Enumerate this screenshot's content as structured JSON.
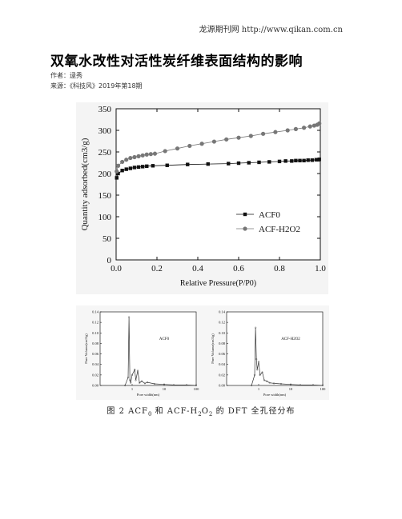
{
  "header": {
    "source_link": "龙源期刊网 http://www.qikan.com.cn"
  },
  "article": {
    "title": "双氧水改性对活性炭纤维表面结构的影响",
    "author": "作者：逯秀",
    "source": "来源：《科技风》2019年第18期"
  },
  "chart_data": [
    {
      "type": "scatter",
      "xlabel": "Relative Pressure(P/P0)",
      "ylabel": "Quantity adsorbed(cm3/g)",
      "xlim": [
        0.0,
        1.0
      ],
      "ylim": [
        0,
        350
      ],
      "x_ticks": [
        "0.0",
        "0.2",
        "0.4",
        "0.6",
        "0.8",
        "1.0"
      ],
      "y_ticks": [
        "0",
        "50",
        "100",
        "150",
        "200",
        "250",
        "300",
        "350"
      ],
      "legend_placement": "right",
      "series": [
        {
          "name": "ACF0",
          "marker": "square",
          "color": "#111111",
          "x": [
            0.003,
            0.01,
            0.03,
            0.05,
            0.07,
            0.09,
            0.11,
            0.13,
            0.15,
            0.18,
            0.25,
            0.35,
            0.45,
            0.55,
            0.6,
            0.65,
            0.7,
            0.75,
            0.8,
            0.83,
            0.86,
            0.88,
            0.9,
            0.92,
            0.94,
            0.96,
            0.98,
            0.99,
            0.995
          ],
          "y": [
            190,
            200,
            207,
            210,
            212,
            214,
            215,
            216,
            217,
            218,
            219,
            221,
            222,
            223,
            224,
            225,
            226,
            227,
            228,
            229,
            229,
            230,
            230,
            230,
            231,
            231,
            232,
            232,
            233
          ]
        },
        {
          "name": "ACF-H2O2",
          "marker": "circle",
          "color": "#777777",
          "x": [
            0.003,
            0.01,
            0.03,
            0.05,
            0.07,
            0.09,
            0.11,
            0.13,
            0.15,
            0.17,
            0.19,
            0.24,
            0.3,
            0.36,
            0.42,
            0.48,
            0.54,
            0.6,
            0.66,
            0.72,
            0.78,
            0.84,
            0.88,
            0.92,
            0.95,
            0.97,
            0.985,
            0.995
          ],
          "y": [
            205,
            218,
            227,
            232,
            236,
            238,
            240,
            242,
            244,
            245,
            246,
            252,
            258,
            264,
            269,
            274,
            279,
            283,
            287,
            292,
            296,
            300,
            303,
            306,
            309,
            311,
            313,
            316
          ]
        }
      ]
    },
    {
      "type": "line",
      "xlabel": "Pore width(nm)",
      "ylabel": "Pore Volume(cm3/g)",
      "xscale": "log",
      "xlim": [
        0.1,
        100
      ],
      "ylim": [
        0,
        0.14
      ],
      "x_ticks": [
        "1",
        "10",
        "100"
      ],
      "y_ticks": [
        "0.00",
        "0.02",
        "0.04",
        "0.06",
        "0.08",
        "0.10",
        "0.12",
        "0.14"
      ],
      "annotation": "ACF0",
      "x": [
        0.6,
        0.75,
        0.8,
        0.85,
        0.9,
        1.0,
        1.2,
        1.3,
        1.5,
        1.7,
        2.0,
        2.5,
        3,
        5,
        10,
        20,
        50,
        100
      ],
      "y": [
        0.0,
        0.015,
        0.13,
        0.01,
        0.005,
        0.02,
        0.03,
        0.01,
        0.028,
        0.005,
        0.008,
        0.004,
        0.006,
        0.003,
        0.002,
        0.001,
        0.001,
        0.0
      ]
    },
    {
      "type": "line",
      "xlabel": "Pore width(nm)",
      "ylabel": "Pore Volume(cm3/g)",
      "xscale": "log",
      "xlim": [
        0.1,
        100
      ],
      "ylim": [
        0,
        0.14
      ],
      "x_ticks": [
        "1",
        "10",
        "100"
      ],
      "y_ticks": [
        "0.00",
        "0.02",
        "0.04",
        "0.06",
        "0.08",
        "0.10",
        "0.12",
        "0.14"
      ],
      "annotation": "ACF-H2O2",
      "x": [
        0.6,
        0.75,
        0.8,
        0.85,
        0.9,
        1.0,
        1.1,
        1.3,
        1.5,
        1.8,
        2.2,
        3,
        5,
        10,
        20,
        50,
        100
      ],
      "y": [
        0.0,
        0.02,
        0.11,
        0.05,
        0.03,
        0.045,
        0.02,
        0.025,
        0.01,
        0.008,
        0.005,
        0.004,
        0.003,
        0.002,
        0.001,
        0.001,
        0.0
      ]
    }
  ],
  "figure": {
    "caption_prefix": "图 2 ACF",
    "caption_sub0": "0",
    "caption_mid": " 和 ACF-H",
    "caption_sub1": "2",
    "caption_mid2": "O",
    "caption_sub2": "2",
    "caption_suffix": " 的 DFT 全孔径分布"
  }
}
